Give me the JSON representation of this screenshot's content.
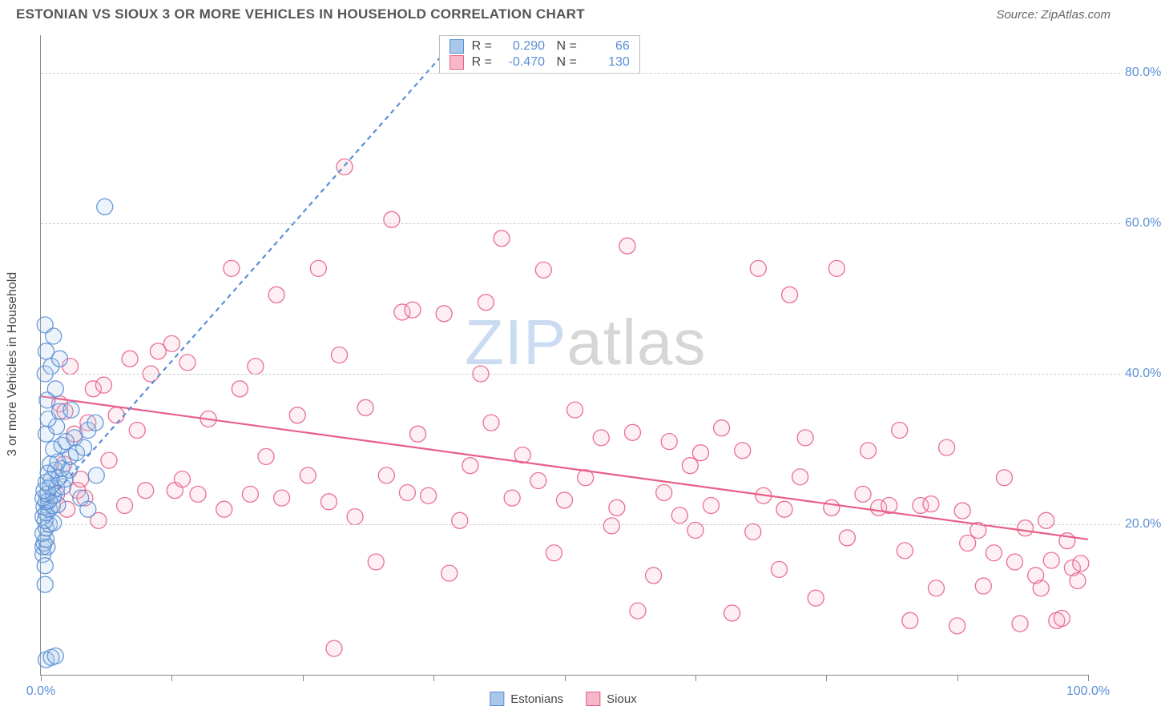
{
  "title": "ESTONIAN VS SIOUX 3 OR MORE VEHICLES IN HOUSEHOLD CORRELATION CHART",
  "source": "Source: ZipAtlas.com",
  "ylabel": "3 or more Vehicles in Household",
  "watermark": {
    "part1": "ZIP",
    "part2": "atlas"
  },
  "chart": {
    "type": "scatter",
    "xlim": [
      0,
      100
    ],
    "ylim": [
      0,
      85
    ],
    "yticks": [
      20,
      40,
      60,
      80
    ],
    "ytick_labels": [
      "20.0%",
      "40.0%",
      "60.0%",
      "80.0%"
    ],
    "xticks": [
      0,
      12.5,
      25,
      37.5,
      50,
      62.5,
      75,
      87.5,
      100
    ],
    "xtick_labeled": {
      "0": "0.0%",
      "100": "100.0%"
    },
    "grid_color": "#cccccc",
    "axis_color": "#888888",
    "background_color": "#ffffff",
    "marker_radius": 10,
    "marker_fill_opacity": 0.22,
    "marker_stroke_opacity": 0.9,
    "marker_stroke_width": 1.3,
    "trend_line_width": 2.2,
    "trend_dash": "6,5",
    "series": {
      "estonians": {
        "label": "Estonians",
        "color": "#5a8fd6",
        "fill": "#a9c7ea",
        "R": "0.290",
        "N": "66",
        "trend": {
          "x1": 0,
          "y1": 22,
          "x2": 40,
          "y2": 85,
          "dashed": true
        },
        "points": [
          [
            0.5,
            2
          ],
          [
            1,
            2.3
          ],
          [
            1.4,
            2.5
          ],
          [
            0.4,
            12
          ],
          [
            0.2,
            16
          ],
          [
            0.2,
            17
          ],
          [
            0.3,
            17.5
          ],
          [
            0.6,
            17
          ],
          [
            0.5,
            18
          ],
          [
            0.2,
            18.8
          ],
          [
            0.5,
            19.5
          ],
          [
            0.8,
            20
          ],
          [
            1.2,
            20.2
          ],
          [
            0.4,
            20.5
          ],
          [
            0.2,
            21
          ],
          [
            0.5,
            21.5
          ],
          [
            0.8,
            22
          ],
          [
            0.3,
            22.3
          ],
          [
            1.1,
            22.5
          ],
          [
            1.6,
            22.6
          ],
          [
            0.5,
            23
          ],
          [
            0.8,
            23.2
          ],
          [
            0.2,
            23.5
          ],
          [
            0.6,
            24
          ],
          [
            1.2,
            23.8
          ],
          [
            0.3,
            24.5
          ],
          [
            0.9,
            25
          ],
          [
            1.5,
            24.8
          ],
          [
            2.1,
            25
          ],
          [
            0.5,
            25.6
          ],
          [
            1.0,
            26
          ],
          [
            1.7,
            26.2
          ],
          [
            2.3,
            26
          ],
          [
            0.7,
            26.8
          ],
          [
            1.4,
            27.2
          ],
          [
            2.0,
            27.4
          ],
          [
            2.7,
            27.2
          ],
          [
            0.9,
            28
          ],
          [
            1.6,
            28.3
          ],
          [
            2.8,
            29
          ],
          [
            3.4,
            29.5
          ],
          [
            4.1,
            30.2
          ],
          [
            1.2,
            30
          ],
          [
            2.0,
            30.5
          ],
          [
            3.2,
            31.5
          ],
          [
            4.5,
            32.5
          ],
          [
            5.2,
            33.5
          ],
          [
            2.4,
            31
          ],
          [
            0.5,
            32
          ],
          [
            1.5,
            33
          ],
          [
            0.7,
            34
          ],
          [
            1.8,
            35
          ],
          [
            2.9,
            35.2
          ],
          [
            0.6,
            36.5
          ],
          [
            1.4,
            38
          ],
          [
            0.4,
            40
          ],
          [
            1.0,
            41
          ],
          [
            1.8,
            42
          ],
          [
            0.5,
            43
          ],
          [
            1.2,
            45
          ],
          [
            0.4,
            46.5
          ],
          [
            5.3,
            26.5
          ],
          [
            4.5,
            22
          ],
          [
            3.8,
            23.5
          ],
          [
            6.1,
            62.2
          ],
          [
            0.4,
            14.5
          ]
        ]
      },
      "sioux": {
        "label": "Sioux",
        "color": "#e85f87",
        "fill": "#f6b8c9",
        "R": "-0.470",
        "N": "130",
        "trend": {
          "x1": 0,
          "y1": 37,
          "x2": 100,
          "y2": 18,
          "dashed": false
        },
        "points": [
          [
            1.5,
            24
          ],
          [
            1.8,
            36
          ],
          [
            2.2,
            28
          ],
          [
            2.5,
            22
          ],
          [
            2.8,
            41
          ],
          [
            3.2,
            32
          ],
          [
            3.5,
            24.5
          ],
          [
            3.8,
            26
          ],
          [
            4.2,
            23.5
          ],
          [
            4.5,
            33.5
          ],
          [
            5,
            38
          ],
          [
            5.5,
            20.5
          ],
          [
            6,
            38.5
          ],
          [
            6.5,
            28.5
          ],
          [
            7.2,
            34.5
          ],
          [
            8,
            22.5
          ],
          [
            8.5,
            42
          ],
          [
            9.2,
            32.5
          ],
          [
            10,
            24.5
          ],
          [
            10.5,
            40
          ],
          [
            11.2,
            43
          ],
          [
            12.5,
            44
          ],
          [
            12.8,
            24.5
          ],
          [
            13.5,
            26
          ],
          [
            14,
            41.5
          ],
          [
            15,
            24
          ],
          [
            16,
            34
          ],
          [
            17.5,
            22
          ],
          [
            18.2,
            54
          ],
          [
            19,
            38
          ],
          [
            20,
            24
          ],
          [
            20.5,
            41
          ],
          [
            21.5,
            29
          ],
          [
            22.5,
            50.5
          ],
          [
            23,
            23.5
          ],
          [
            24.5,
            34.5
          ],
          [
            25.5,
            26.5
          ],
          [
            26.5,
            54
          ],
          [
            27.5,
            23
          ],
          [
            28,
            3.5
          ],
          [
            28.5,
            42.5
          ],
          [
            29,
            67.5
          ],
          [
            30,
            21
          ],
          [
            31,
            35.5
          ],
          [
            32,
            15
          ],
          [
            33,
            26.5
          ],
          [
            33.5,
            60.5
          ],
          [
            34.5,
            48.2
          ],
          [
            35,
            24.2
          ],
          [
            35.5,
            48.5
          ],
          [
            36,
            32
          ],
          [
            37,
            23.8
          ],
          [
            38.5,
            48
          ],
          [
            39,
            13.5
          ],
          [
            40,
            20.5
          ],
          [
            41,
            27.8
          ],
          [
            42,
            40
          ],
          [
            42.5,
            49.5
          ],
          [
            43,
            33.5
          ],
          [
            44,
            58
          ],
          [
            45,
            23.5
          ],
          [
            46,
            29.2
          ],
          [
            47.5,
            25.8
          ],
          [
            48,
            53.8
          ],
          [
            49,
            16.2
          ],
          [
            50,
            23.2
          ],
          [
            51,
            35.2
          ],
          [
            52,
            26.2
          ],
          [
            53.5,
            31.5
          ],
          [
            54.5,
            19.8
          ],
          [
            55,
            22.2
          ],
          [
            56,
            57
          ],
          [
            56.5,
            32.2
          ],
          [
            57,
            8.5
          ],
          [
            58.5,
            13.2
          ],
          [
            59.5,
            24.2
          ],
          [
            60,
            31
          ],
          [
            61,
            21.2
          ],
          [
            62,
            27.8
          ],
          [
            62.5,
            19.2
          ],
          [
            63,
            29.5
          ],
          [
            64,
            22.5
          ],
          [
            65,
            32.8
          ],
          [
            66,
            8.2
          ],
          [
            67,
            29.8
          ],
          [
            68,
            19
          ],
          [
            68.5,
            54
          ],
          [
            69,
            23.8
          ],
          [
            70.5,
            14
          ],
          [
            71,
            22
          ],
          [
            71.5,
            50.5
          ],
          [
            72.5,
            26.3
          ],
          [
            73,
            31.5
          ],
          [
            74,
            10.2
          ],
          [
            75.5,
            22.2
          ],
          [
            76,
            54
          ],
          [
            77,
            18.2
          ],
          [
            78.5,
            24
          ],
          [
            79,
            29.8
          ],
          [
            80,
            22.2
          ],
          [
            81,
            22.5
          ],
          [
            82,
            32.5
          ],
          [
            82.5,
            16.5
          ],
          [
            83,
            7.2
          ],
          [
            84,
            22.5
          ],
          [
            85,
            22.7
          ],
          [
            85.5,
            11.5
          ],
          [
            86.5,
            30.2
          ],
          [
            87.5,
            6.5
          ],
          [
            88,
            21.8
          ],
          [
            88.5,
            17.5
          ],
          [
            89.5,
            19.2
          ],
          [
            90,
            11.8
          ],
          [
            91,
            16.2
          ],
          [
            92,
            26.2
          ],
          [
            93,
            15
          ],
          [
            93.5,
            6.8
          ],
          [
            94,
            19.5
          ],
          [
            95,
            13.2
          ],
          [
            95.5,
            11.5
          ],
          [
            96,
            20.5
          ],
          [
            96.5,
            15.2
          ],
          [
            97,
            7.2
          ],
          [
            97.5,
            7.5
          ],
          [
            98,
            17.8
          ],
          [
            98.5,
            14.2
          ],
          [
            99,
            12.5
          ],
          [
            99.3,
            14.8
          ],
          [
            2.3,
            35
          ]
        ]
      }
    }
  },
  "legend": {
    "items": [
      {
        "key": "estonians",
        "label": "Estonians"
      },
      {
        "key": "sioux",
        "label": "Sioux"
      }
    ]
  }
}
